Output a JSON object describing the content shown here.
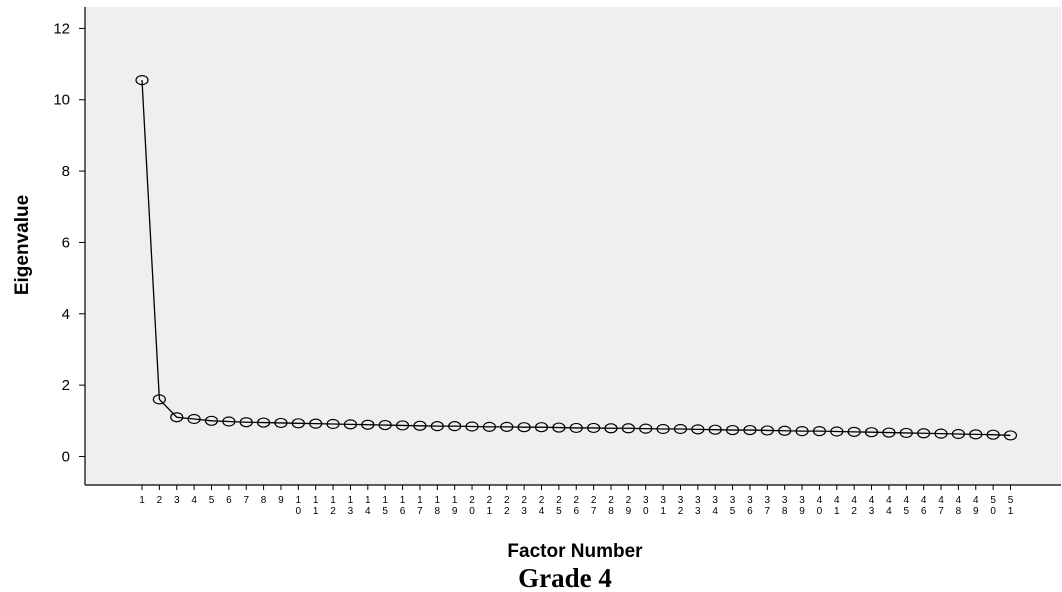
{
  "chart_data": {
    "type": "line",
    "title": "Grade 4",
    "xlabel": "Factor Number",
    "ylabel": "Eigenvalue",
    "ylim": [
      -0.8,
      12.6
    ],
    "yticks": [
      0,
      2,
      4,
      6,
      8,
      10,
      12
    ],
    "grid": false,
    "markers": "open-circle",
    "x": [
      "1",
      "2",
      "3",
      "4",
      "5",
      "6",
      "7",
      "8",
      "9",
      "10",
      "11",
      "12",
      "13",
      "14",
      "15",
      "16",
      "17",
      "18",
      "19",
      "20",
      "21",
      "22",
      "23",
      "24",
      "25",
      "26",
      "27",
      "28",
      "29",
      "30",
      "31",
      "32",
      "33",
      "34",
      "35",
      "36",
      "37",
      "38",
      "39",
      "40",
      "41",
      "42",
      "43",
      "44",
      "45",
      "46",
      "47",
      "48",
      "49",
      "50",
      "51"
    ],
    "series": [
      {
        "values": [
          10.55,
          1.6,
          1.1,
          1.05,
          1.0,
          0.98,
          0.96,
          0.95,
          0.94,
          0.93,
          0.92,
          0.91,
          0.9,
          0.89,
          0.88,
          0.87,
          0.86,
          0.85,
          0.85,
          0.84,
          0.83,
          0.83,
          0.82,
          0.82,
          0.81,
          0.8,
          0.8,
          0.79,
          0.79,
          0.78,
          0.77,
          0.77,
          0.76,
          0.75,
          0.74,
          0.74,
          0.73,
          0.72,
          0.71,
          0.71,
          0.7,
          0.69,
          0.68,
          0.67,
          0.66,
          0.65,
          0.64,
          0.63,
          0.62,
          0.61,
          0.59
        ]
      }
    ],
    "colors": {
      "plot_background": "#efefef",
      "line": "#000000",
      "frame": "#000000"
    }
  }
}
